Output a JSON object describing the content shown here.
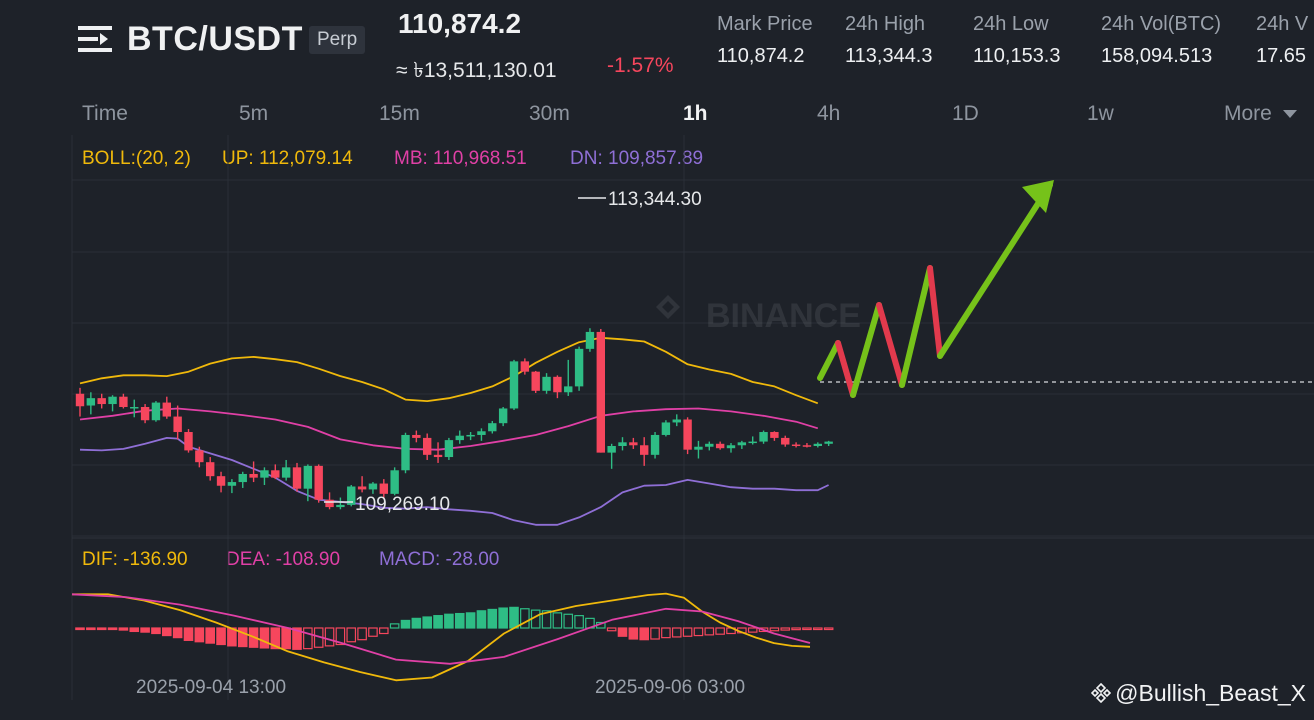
{
  "header": {
    "pair": "BTC/USDT",
    "contract_type": "Perp",
    "last_price": "110,874.2",
    "fiat_price": "≈ ৳13,511,130.01",
    "change_pct": "-1.57%",
    "stats": [
      {
        "label": "Mark Price",
        "value": "110,874.2"
      },
      {
        "label": "24h High",
        "value": "113,344.3"
      },
      {
        "label": "24h Low",
        "value": "110,153.3"
      },
      {
        "label": "24h Vol(BTC)",
        "value": "158,094.513"
      },
      {
        "label": "24h V",
        "value": "17.65"
      }
    ]
  },
  "timeframes": {
    "time": "Time",
    "items": [
      "5m",
      "15m",
      "30m",
      "1h",
      "4h",
      "1D",
      "1w"
    ],
    "active": "1h",
    "more": "More"
  },
  "boll": {
    "label": "BOLL:(20, 2)",
    "up": "UP: 112,079.14",
    "mb": "MB: 110,968.51",
    "dn": "DN: 109,857.89"
  },
  "macd": {
    "dif": "DIF: -136.90",
    "dea": "DEA: -108.90",
    "macd": "MACD: -28.00"
  },
  "price_annotations": {
    "high": "113,344.30",
    "low": "109,269.10"
  },
  "x_axis_labels": [
    "2025-09-04 13:00",
    "2025-09-06 03:00"
  ],
  "watermark": "BINANCE",
  "credit": "@Bullish_Beast_X",
  "colors": {
    "up": "#2ebd85",
    "down": "#f6465d",
    "boll_up": "#f0b90b",
    "boll_mb": "#e040a6",
    "boll_dn": "#8f6fd6",
    "projection_green": "#76c21a",
    "projection_red": "#e23a4d"
  },
  "chart_data": {
    "type": "candlestick",
    "interval": "1h",
    "ylim": [
      108800,
      113800
    ],
    "candles": [
      {
        "o": 110760,
        "h": 110840,
        "l": 110450,
        "c": 110590
      },
      {
        "o": 110600,
        "h": 110780,
        "l": 110480,
        "c": 110700
      },
      {
        "o": 110700,
        "h": 110760,
        "l": 110560,
        "c": 110620
      },
      {
        "o": 110620,
        "h": 110740,
        "l": 110520,
        "c": 110720
      },
      {
        "o": 110720,
        "h": 110760,
        "l": 110560,
        "c": 110580
      },
      {
        "o": 110580,
        "h": 110680,
        "l": 110440,
        "c": 110580
      },
      {
        "o": 110580,
        "h": 110620,
        "l": 110360,
        "c": 110400
      },
      {
        "o": 110400,
        "h": 110660,
        "l": 110380,
        "c": 110640
      },
      {
        "o": 110640,
        "h": 110720,
        "l": 110420,
        "c": 110450
      },
      {
        "o": 110450,
        "h": 110600,
        "l": 110140,
        "c": 110240
      },
      {
        "o": 110240,
        "h": 110280,
        "l": 109960,
        "c": 109990
      },
      {
        "o": 109990,
        "h": 110040,
        "l": 109760,
        "c": 109830
      },
      {
        "o": 109830,
        "h": 109900,
        "l": 109580,
        "c": 109640
      },
      {
        "o": 109640,
        "h": 109700,
        "l": 109420,
        "c": 109510
      },
      {
        "o": 109510,
        "h": 109600,
        "l": 109410,
        "c": 109560
      },
      {
        "o": 109560,
        "h": 109700,
        "l": 109480,
        "c": 109670
      },
      {
        "o": 109670,
        "h": 109840,
        "l": 109560,
        "c": 109620
      },
      {
        "o": 109620,
        "h": 109760,
        "l": 109520,
        "c": 109720
      },
      {
        "o": 109720,
        "h": 109800,
        "l": 109600,
        "c": 109620
      },
      {
        "o": 109620,
        "h": 109860,
        "l": 109580,
        "c": 109760
      },
      {
        "o": 109760,
        "h": 109820,
        "l": 109430,
        "c": 109470
      },
      {
        "o": 109470,
        "h": 109800,
        "l": 109300,
        "c": 109780
      },
      {
        "o": 109780,
        "h": 109800,
        "l": 109280,
        "c": 109320
      },
      {
        "o": 109320,
        "h": 109420,
        "l": 109190,
        "c": 109220
      },
      {
        "o": 109220,
        "h": 109350,
        "l": 109190,
        "c": 109250
      },
      {
        "o": 109250,
        "h": 109520,
        "l": 109230,
        "c": 109500
      },
      {
        "o": 109500,
        "h": 109640,
        "l": 109420,
        "c": 109460
      },
      {
        "o": 109460,
        "h": 109560,
        "l": 109400,
        "c": 109540
      },
      {
        "o": 109540,
        "h": 109600,
        "l": 109340,
        "c": 109400
      },
      {
        "o": 109400,
        "h": 109760,
        "l": 109380,
        "c": 109720
      },
      {
        "o": 109720,
        "h": 110230,
        "l": 109680,
        "c": 110200
      },
      {
        "o": 110200,
        "h": 110260,
        "l": 110100,
        "c": 110160
      },
      {
        "o": 110160,
        "h": 110220,
        "l": 109860,
        "c": 109930
      },
      {
        "o": 109930,
        "h": 110100,
        "l": 109820,
        "c": 109900
      },
      {
        "o": 109900,
        "h": 110160,
        "l": 109860,
        "c": 110130
      },
      {
        "o": 110130,
        "h": 110260,
        "l": 110080,
        "c": 110190
      },
      {
        "o": 110190,
        "h": 110240,
        "l": 110130,
        "c": 110200
      },
      {
        "o": 110200,
        "h": 110290,
        "l": 110120,
        "c": 110250
      },
      {
        "o": 110250,
        "h": 110390,
        "l": 110220,
        "c": 110360
      },
      {
        "o": 110360,
        "h": 110580,
        "l": 110320,
        "c": 110560
      },
      {
        "o": 110560,
        "h": 111220,
        "l": 110540,
        "c": 111200
      },
      {
        "o": 111200,
        "h": 111240,
        "l": 111020,
        "c": 111060
      },
      {
        "o": 111060,
        "h": 111070,
        "l": 110770,
        "c": 110800
      },
      {
        "o": 110800,
        "h": 111040,
        "l": 110760,
        "c": 110990
      },
      {
        "o": 110990,
        "h": 111010,
        "l": 110700,
        "c": 110780
      },
      {
        "o": 110780,
        "h": 111220,
        "l": 110730,
        "c": 110860
      },
      {
        "o": 110860,
        "h": 111400,
        "l": 110800,
        "c": 111370
      },
      {
        "o": 111370,
        "h": 111650,
        "l": 111330,
        "c": 111600
      },
      {
        "o": 111600,
        "h": 111640,
        "l": 109960,
        "c": 109960
      },
      {
        "o": 109960,
        "h": 110080,
        "l": 109740,
        "c": 110050
      },
      {
        "o": 110050,
        "h": 110170,
        "l": 109990,
        "c": 110100
      },
      {
        "o": 110100,
        "h": 110160,
        "l": 110010,
        "c": 110060
      },
      {
        "o": 110060,
        "h": 110170,
        "l": 109780,
        "c": 109930
      },
      {
        "o": 109930,
        "h": 110240,
        "l": 109880,
        "c": 110200
      },
      {
        "o": 110200,
        "h": 110400,
        "l": 110180,
        "c": 110370
      },
      {
        "o": 110370,
        "h": 110480,
        "l": 110320,
        "c": 110410
      },
      {
        "o": 110410,
        "h": 110440,
        "l": 109940,
        "c": 110000
      },
      {
        "o": 110000,
        "h": 110120,
        "l": 109880,
        "c": 110040
      },
      {
        "o": 110040,
        "h": 110110,
        "l": 109990,
        "c": 110080
      },
      {
        "o": 110080,
        "h": 110110,
        "l": 110000,
        "c": 110020
      },
      {
        "o": 110020,
        "h": 110090,
        "l": 109960,
        "c": 110060
      },
      {
        "o": 110060,
        "h": 110120,
        "l": 110010,
        "c": 110100
      },
      {
        "o": 110100,
        "h": 110180,
        "l": 110070,
        "c": 110110
      },
      {
        "o": 110110,
        "h": 110260,
        "l": 110080,
        "c": 110240
      },
      {
        "o": 110240,
        "h": 110250,
        "l": 110120,
        "c": 110160
      },
      {
        "o": 110160,
        "h": 110190,
        "l": 110040,
        "c": 110070
      },
      {
        "o": 110070,
        "h": 110100,
        "l": 110030,
        "c": 110060
      },
      {
        "o": 110060,
        "h": 110090,
        "l": 110030,
        "c": 110050
      },
      {
        "o": 110050,
        "h": 110100,
        "l": 110030,
        "c": 110080
      },
      {
        "o": 110080,
        "h": 110120,
        "l": 110050,
        "c": 110110
      }
    ],
    "boll_up": [
      [
        0,
        110900
      ],
      [
        2,
        110970
      ],
      [
        4,
        111010
      ],
      [
        6,
        111010
      ],
      [
        8,
        111000
      ],
      [
        10,
        111060
      ],
      [
        12,
        111170
      ],
      [
        14,
        111240
      ],
      [
        16,
        111260
      ],
      [
        18,
        111230
      ],
      [
        20,
        111190
      ],
      [
        22,
        111100
      ],
      [
        24,
        111000
      ],
      [
        26,
        110920
      ],
      [
        28,
        110820
      ],
      [
        30,
        110680
      ],
      [
        32,
        110660
      ],
      [
        34,
        110700
      ],
      [
        36,
        110770
      ],
      [
        38,
        110860
      ],
      [
        40,
        111000
      ],
      [
        42,
        111180
      ],
      [
        44,
        111330
      ],
      [
        46,
        111460
      ],
      [
        48,
        111520
      ],
      [
        50,
        111500
      ],
      [
        52,
        111470
      ],
      [
        54,
        111330
      ],
      [
        56,
        111160
      ],
      [
        58,
        111090
      ],
      [
        60,
        111030
      ],
      [
        62,
        110920
      ],
      [
        64,
        110860
      ],
      [
        66,
        110740
      ],
      [
        68,
        110630
      ]
    ],
    "boll_mb": [
      [
        0,
        110410
      ],
      [
        3,
        110460
      ],
      [
        6,
        110530
      ],
      [
        9,
        110560
      ],
      [
        12,
        110520
      ],
      [
        15,
        110470
      ],
      [
        18,
        110410
      ],
      [
        21,
        110310
      ],
      [
        24,
        110140
      ],
      [
        27,
        110060
      ],
      [
        30,
        110010
      ],
      [
        33,
        110000
      ],
      [
        36,
        110050
      ],
      [
        39,
        110120
      ],
      [
        42,
        110200
      ],
      [
        45,
        110320
      ],
      [
        48,
        110460
      ],
      [
        51,
        110520
      ],
      [
        54,
        110550
      ],
      [
        57,
        110560
      ],
      [
        60,
        110520
      ],
      [
        63,
        110460
      ],
      [
        66,
        110380
      ],
      [
        68,
        110290
      ]
    ],
    "boll_dn": [
      [
        0,
        110000
      ],
      [
        2,
        109990
      ],
      [
        4,
        110010
      ],
      [
        6,
        110080
      ],
      [
        8,
        110160
      ],
      [
        9,
        110150
      ],
      [
        10,
        110040
      ],
      [
        12,
        109950
      ],
      [
        14,
        109860
      ],
      [
        16,
        109740
      ],
      [
        18,
        109620
      ],
      [
        20,
        109440
      ],
      [
        22,
        109320
      ],
      [
        24,
        109290
      ],
      [
        26,
        109260
      ],
      [
        28,
        109210
      ],
      [
        30,
        109200
      ],
      [
        32,
        109220
      ],
      [
        34,
        109190
      ],
      [
        36,
        109170
      ],
      [
        38,
        109140
      ],
      [
        40,
        109040
      ],
      [
        42,
        108980
      ],
      [
        44,
        108980
      ],
      [
        46,
        109080
      ],
      [
        48,
        109220
      ],
      [
        50,
        109420
      ],
      [
        52,
        109510
      ],
      [
        54,
        109520
      ],
      [
        56,
        109590
      ],
      [
        58,
        109540
      ],
      [
        60,
        109490
      ],
      [
        62,
        109470
      ],
      [
        64,
        109470
      ],
      [
        66,
        109450
      ],
      [
        68,
        109450
      ],
      [
        69,
        109520
      ]
    ],
    "macd_ylim": [
      -420,
      400
    ],
    "macd_hist": [
      -5,
      -5,
      -8,
      -10,
      -15,
      -25,
      -30,
      -40,
      -55,
      -70,
      -90,
      -100,
      -110,
      -120,
      -130,
      -135,
      -140,
      -145,
      -150,
      -150,
      -155,
      -150,
      -140,
      -130,
      -120,
      -100,
      -85,
      -60,
      -40,
      30,
      55,
      70,
      80,
      90,
      100,
      105,
      110,
      125,
      135,
      145,
      150,
      140,
      130,
      125,
      110,
      100,
      90,
      70,
      40,
      -20,
      -60,
      -80,
      -85,
      -80,
      -70,
      -65,
      -60,
      -55,
      -50,
      -45,
      -40,
      -35,
      -30,
      -25,
      -20,
      -15,
      -12,
      -10,
      -8,
      -5
    ],
    "dif": [
      [
        0,
        245
      ],
      [
        4,
        245
      ],
      [
        8,
        200
      ],
      [
        12,
        130
      ],
      [
        16,
        40
      ],
      [
        20,
        -60
      ],
      [
        24,
        -170
      ],
      [
        28,
        -250
      ],
      [
        32,
        -320
      ],
      [
        36,
        -380
      ],
      [
        40,
        -360
      ],
      [
        44,
        -240
      ],
      [
        48,
        -40
      ],
      [
        52,
        100
      ],
      [
        56,
        160
      ],
      [
        60,
        200
      ],
      [
        64,
        240
      ],
      [
        66,
        250
      ],
      [
        68,
        220
      ],
      [
        70,
        120
      ],
      [
        72,
        40
      ],
      [
        74,
        -20
      ],
      [
        76,
        -70
      ],
      [
        78,
        -110
      ],
      [
        80,
        -130
      ],
      [
        82,
        -137
      ]
    ],
    "dea": [
      [
        0,
        245
      ],
      [
        6,
        225
      ],
      [
        12,
        170
      ],
      [
        18,
        90
      ],
      [
        24,
        0
      ],
      [
        30,
        -110
      ],
      [
        36,
        -230
      ],
      [
        42,
        -260
      ],
      [
        48,
        -210
      ],
      [
        54,
        -80
      ],
      [
        60,
        60
      ],
      [
        66,
        140
      ],
      [
        70,
        120
      ],
      [
        74,
        50
      ],
      [
        78,
        -40
      ],
      [
        82,
        -109
      ]
    ],
    "projection": [
      [
        820,
        378,
        "green"
      ],
      [
        838,
        343,
        "red"
      ],
      [
        853,
        395,
        "green"
      ],
      [
        879,
        305,
        "red"
      ],
      [
        902,
        385,
        "green"
      ],
      [
        930,
        268,
        "red"
      ],
      [
        940,
        356,
        "green"
      ],
      [
        1050,
        185,
        "green"
      ]
    ]
  }
}
